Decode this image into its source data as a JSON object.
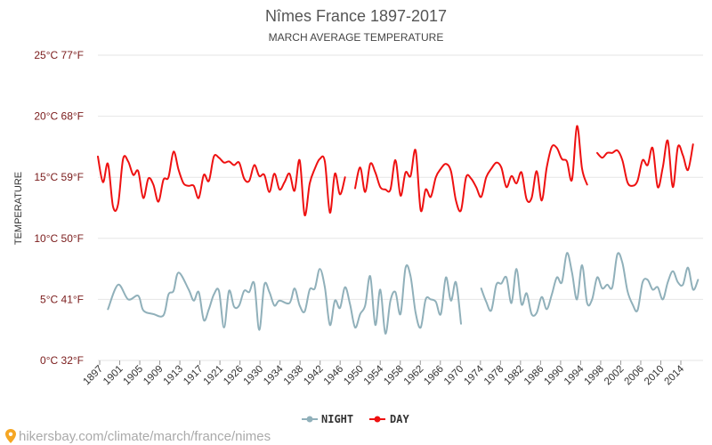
{
  "chart_data": {
    "type": "line",
    "title": "Nîmes France 1897-2017",
    "subtitle": "MARCH AVERAGE TEMPERATURE",
    "ylabel": "TEMPERATURE",
    "xlabel": "",
    "ylim": [
      0,
      25
    ],
    "xlim": [
      1897,
      2017
    ],
    "y_ticks": [
      {
        "value": 0,
        "label": "0°C 32°F"
      },
      {
        "value": 5,
        "label": "5°C 41°F"
      },
      {
        "value": 10,
        "label": "10°C 50°F"
      },
      {
        "value": 15,
        "label": "15°C 59°F"
      },
      {
        "value": 20,
        "label": "20°C 68°F"
      },
      {
        "value": 25,
        "label": "25°C 77°F"
      }
    ],
    "x_tick_labels": [
      "1897",
      "1901",
      "1905",
      "1909",
      "1913",
      "1917",
      "1921",
      "1926",
      "1930",
      "1934",
      "1938",
      "1942",
      "1946",
      "1950",
      "1954",
      "1958",
      "1962",
      "1966",
      "1970",
      "1974",
      "1978",
      "1982",
      "1986",
      "1990",
      "1994",
      "1998",
      "2002",
      "2006",
      "2010",
      "2014"
    ],
    "grid": true,
    "legend_position": "bottom-center",
    "series": [
      {
        "name": "NIGHT",
        "color": "#90b0ba",
        "values": [
          [
            1899,
            4.2
          ],
          [
            1901,
            6.2
          ],
          [
            1903,
            5.0
          ],
          [
            1905,
            5.3
          ],
          [
            1906,
            4.1
          ],
          [
            1908,
            3.8
          ],
          [
            1910,
            3.7
          ],
          [
            1911,
            5.4
          ],
          [
            1912,
            5.7
          ],
          [
            1913,
            7.2
          ],
          [
            1915,
            5.8
          ],
          [
            1916,
            4.9
          ],
          [
            1917,
            5.6
          ],
          [
            1918,
            3.3
          ],
          [
            1919,
            4.2
          ],
          [
            1920,
            5.4
          ],
          [
            1921,
            5.7
          ],
          [
            1922,
            2.7
          ],
          [
            1923,
            5.7
          ],
          [
            1924,
            4.4
          ],
          [
            1925,
            4.5
          ],
          [
            1926,
            5.7
          ],
          [
            1927,
            5.6
          ],
          [
            1928,
            6.3
          ],
          [
            1929,
            2.5
          ],
          [
            1930,
            6.2
          ],
          [
            1931,
            5.6
          ],
          [
            1932,
            4.5
          ],
          [
            1933,
            4.9
          ],
          [
            1935,
            4.7
          ],
          [
            1936,
            5.9
          ],
          [
            1937,
            4.5
          ],
          [
            1938,
            4.0
          ],
          [
            1939,
            5.8
          ],
          [
            1940,
            5.9
          ],
          [
            1941,
            7.5
          ],
          [
            1942,
            6.0
          ],
          [
            1943,
            2.9
          ],
          [
            1944,
            4.9
          ],
          [
            1945,
            4.3
          ],
          [
            1946,
            6.0
          ],
          [
            1947,
            4.6
          ],
          [
            1948,
            2.7
          ],
          [
            1949,
            3.8
          ],
          [
            1950,
            4.5
          ],
          [
            1951,
            6.9
          ],
          [
            1952,
            2.9
          ],
          [
            1953,
            5.8
          ],
          [
            1954,
            2.2
          ],
          [
            1955,
            4.9
          ],
          [
            1956,
            5.6
          ],
          [
            1957,
            3.8
          ],
          [
            1958,
            7.6
          ],
          [
            1959,
            6.9
          ],
          [
            1960,
            3.9
          ],
          [
            1961,
            2.7
          ],
          [
            1962,
            5.0
          ],
          [
            1963,
            5.0
          ],
          [
            1964,
            4.8
          ],
          [
            1965,
            3.8
          ],
          [
            1966,
            6.8
          ],
          [
            1967,
            4.9
          ],
          [
            1968,
            6.4
          ],
          [
            1969,
            3.0
          ],
          null,
          [
            1973,
            5.9
          ],
          [
            1974,
            4.8
          ],
          [
            1975,
            4.1
          ],
          [
            1976,
            6.2
          ],
          [
            1977,
            6.3
          ],
          [
            1978,
            6.8
          ],
          [
            1979,
            4.7
          ],
          [
            1980,
            7.5
          ],
          [
            1981,
            4.6
          ],
          [
            1982,
            5.5
          ],
          [
            1983,
            3.8
          ],
          [
            1984,
            3.9
          ],
          [
            1985,
            5.2
          ],
          [
            1986,
            4.2
          ],
          [
            1987,
            5.4
          ],
          [
            1988,
            6.8
          ],
          [
            1989,
            6.4
          ],
          [
            1990,
            8.8
          ],
          [
            1991,
            7.2
          ],
          [
            1992,
            5.0
          ],
          [
            1993,
            7.8
          ],
          [
            1994,
            4.7
          ],
          [
            1995,
            5.0
          ],
          [
            1996,
            6.8
          ],
          [
            1997,
            5.9
          ],
          [
            1998,
            6.2
          ],
          [
            1999,
            6.0
          ],
          [
            2000,
            8.7
          ],
          [
            2001,
            8.0
          ],
          [
            2002,
            5.7
          ],
          [
            2003,
            4.6
          ],
          [
            2004,
            4.1
          ],
          [
            2005,
            6.4
          ],
          [
            2006,
            6.6
          ],
          [
            2007,
            5.8
          ],
          [
            2008,
            6.0
          ],
          [
            2009,
            5.0
          ],
          [
            2010,
            6.4
          ],
          [
            2011,
            7.3
          ],
          [
            2012,
            6.4
          ],
          [
            2013,
            6.2
          ],
          [
            2014,
            7.6
          ],
          [
            2015,
            5.8
          ],
          [
            2016,
            6.6
          ]
        ]
      },
      {
        "name": "DAY",
        "color": "#ee1111",
        "values": [
          [
            1897,
            16.7
          ],
          [
            1898,
            14.6
          ],
          [
            1899,
            16.1
          ],
          [
            1900,
            12.6
          ],
          [
            1901,
            12.8
          ],
          [
            1902,
            16.5
          ],
          [
            1903,
            16.3
          ],
          [
            1904,
            15.2
          ],
          [
            1905,
            15.5
          ],
          [
            1906,
            13.3
          ],
          [
            1907,
            14.9
          ],
          [
            1908,
            14.4
          ],
          [
            1909,
            13.0
          ],
          [
            1910,
            14.8
          ],
          [
            1911,
            15.0
          ],
          [
            1912,
            17.1
          ],
          [
            1913,
            15.6
          ],
          [
            1914,
            14.5
          ],
          [
            1915,
            14.3
          ],
          [
            1916,
            14.3
          ],
          [
            1917,
            13.3
          ],
          [
            1918,
            15.2
          ],
          [
            1919,
            14.7
          ],
          [
            1920,
            16.7
          ],
          [
            1921,
            16.6
          ],
          [
            1922,
            16.2
          ],
          [
            1923,
            16.3
          ],
          [
            1924,
            16.0
          ],
          [
            1925,
            16.2
          ],
          [
            1926,
            14.9
          ],
          [
            1927,
            14.7
          ],
          [
            1928,
            16.0
          ],
          [
            1929,
            15.1
          ],
          [
            1930,
            15.2
          ],
          [
            1931,
            13.8
          ],
          [
            1932,
            15.3
          ],
          [
            1933,
            14.0
          ],
          [
            1934,
            14.6
          ],
          [
            1935,
            15.3
          ],
          [
            1936,
            13.9
          ],
          [
            1937,
            16.4
          ],
          [
            1938,
            11.9
          ],
          [
            1939,
            14.5
          ],
          [
            1940,
            15.7
          ],
          [
            1941,
            16.5
          ],
          [
            1942,
            16.3
          ],
          [
            1943,
            12.1
          ],
          [
            1944,
            15.3
          ],
          [
            1945,
            13.6
          ],
          [
            1946,
            15.0
          ],
          null,
          [
            1948,
            14.1
          ],
          [
            1949,
            15.8
          ],
          [
            1950,
            13.8
          ],
          [
            1951,
            16.1
          ],
          [
            1952,
            15.4
          ],
          [
            1953,
            14.2
          ],
          [
            1954,
            14.0
          ],
          [
            1955,
            14.0
          ],
          [
            1956,
            16.4
          ],
          [
            1957,
            13.5
          ],
          [
            1958,
            15.4
          ],
          [
            1959,
            15.1
          ],
          [
            1960,
            17.2
          ],
          [
            1961,
            12.3
          ],
          [
            1962,
            14.0
          ],
          [
            1963,
            13.4
          ],
          [
            1964,
            15.0
          ],
          [
            1965,
            15.7
          ],
          [
            1966,
            16.1
          ],
          [
            1967,
            15.5
          ],
          [
            1968,
            13.1
          ],
          [
            1969,
            12.3
          ],
          [
            1970,
            15.0
          ],
          [
            1971,
            14.9
          ],
          [
            1972,
            14.2
          ],
          [
            1973,
            13.4
          ],
          [
            1974,
            15.0
          ],
          [
            1975,
            15.7
          ],
          [
            1976,
            16.2
          ],
          [
            1977,
            15.8
          ],
          [
            1978,
            14.2
          ],
          [
            1979,
            15.1
          ],
          [
            1980,
            14.5
          ],
          [
            1981,
            15.4
          ],
          [
            1982,
            13.2
          ],
          [
            1983,
            13.3
          ],
          [
            1984,
            15.5
          ],
          [
            1985,
            13.1
          ],
          [
            1986,
            15.8
          ],
          [
            1987,
            17.5
          ],
          [
            1988,
            17.4
          ],
          [
            1989,
            16.5
          ],
          [
            1990,
            16.3
          ],
          [
            1991,
            14.8
          ],
          [
            1992,
            19.2
          ],
          [
            1993,
            15.7
          ],
          [
            1994,
            14.4
          ],
          null,
          [
            1996,
            17.0
          ],
          [
            1997,
            16.6
          ],
          [
            1998,
            17.0
          ],
          [
            1999,
            17.0
          ],
          [
            2000,
            17.2
          ],
          [
            2001,
            16.4
          ],
          [
            2002,
            14.6
          ],
          [
            2003,
            14.3
          ],
          [
            2004,
            14.7
          ],
          [
            2005,
            16.4
          ],
          [
            2006,
            16.0
          ],
          [
            2007,
            17.4
          ],
          [
            2008,
            14.2
          ],
          [
            2009,
            15.8
          ],
          [
            2010,
            18.0
          ],
          [
            2011,
            14.2
          ],
          [
            2012,
            17.5
          ],
          [
            2013,
            16.8
          ],
          [
            2014,
            15.6
          ],
          [
            2015,
            17.7
          ]
        ]
      }
    ]
  },
  "legend": {
    "night_label": "NIGHT",
    "day_label": "DAY"
  },
  "source": {
    "text": "hikersbay.com/climate/march/france/nimes",
    "icon": "location-pin-icon",
    "color": "#f5a623"
  }
}
